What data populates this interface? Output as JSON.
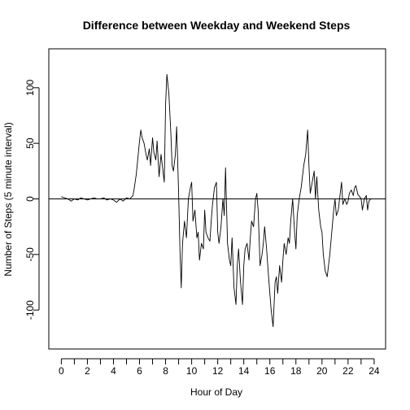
{
  "chart_data": {
    "type": "line",
    "title": "Difference between Weekday and Weekend Steps",
    "xlabel": "Hour of Day",
    "ylabel": "Number of Steps (5 minute interval)",
    "xlim": [
      -0.96,
      24.88
    ],
    "ylim": [
      -135,
      135
    ],
    "x_tick_labels": [
      "0",
      "2",
      "4",
      "6",
      "8",
      "10",
      "12",
      "14",
      "16",
      "18",
      "20",
      "22",
      "24"
    ],
    "x_minor_ticks": [
      1,
      3,
      5,
      7,
      9,
      11,
      13,
      15,
      17,
      19,
      21,
      23
    ],
    "y_ticks": [
      -100,
      -50,
      0,
      50,
      100
    ],
    "y_tick_labels": [
      "-100",
      "-50",
      "0",
      "50",
      "100"
    ],
    "reference_line": {
      "y": 0,
      "orientation": "horizontal"
    },
    "grid": false,
    "legend": "none",
    "series": [
      {
        "color": "#000000",
        "x": [
          0,
          0.25,
          0.5,
          0.75,
          1.0,
          1.25,
          1.5,
          1.75,
          2.0,
          2.25,
          2.5,
          2.75,
          3.0,
          3.25,
          3.5,
          3.75,
          4.0,
          4.25,
          4.5,
          4.75,
          5.0,
          5.25,
          5.5,
          5.6,
          5.75,
          5.9,
          6.0,
          6.1,
          6.2,
          6.35,
          6.5,
          6.6,
          6.75,
          6.85,
          7.0,
          7.1,
          7.25,
          7.35,
          7.5,
          7.65,
          7.75,
          7.9,
          8.0,
          8.1,
          8.25,
          8.4,
          8.5,
          8.6,
          8.75,
          8.85,
          9.0,
          9.1,
          9.2,
          9.3,
          9.45,
          9.6,
          9.75,
          9.9,
          10.0,
          10.1,
          10.25,
          10.4,
          10.5,
          10.6,
          10.75,
          10.9,
          11.0,
          11.1,
          11.25,
          11.4,
          11.5,
          11.6,
          11.75,
          11.9,
          12.0,
          12.1,
          12.25,
          12.4,
          12.5,
          12.6,
          12.75,
          12.9,
          13.0,
          13.1,
          13.25,
          13.4,
          13.5,
          13.6,
          13.75,
          13.9,
          14.0,
          14.1,
          14.25,
          14.4,
          14.5,
          14.6,
          14.75,
          14.9,
          15.0,
          15.1,
          15.25,
          15.4,
          15.5,
          15.6,
          15.75,
          15.9,
          16.0,
          16.1,
          16.25,
          16.4,
          16.5,
          16.6,
          16.75,
          16.9,
          17.0,
          17.1,
          17.25,
          17.4,
          17.5,
          17.6,
          17.75,
          17.9,
          18.0,
          18.1,
          18.25,
          18.4,
          18.5,
          18.6,
          18.75,
          18.9,
          19.0,
          19.1,
          19.25,
          19.4,
          19.5,
          19.6,
          19.75,
          19.9,
          20.0,
          20.1,
          20.25,
          20.4,
          20.5,
          20.6,
          20.75,
          20.9,
          21.0,
          21.1,
          21.25,
          21.4,
          21.5,
          21.6,
          21.75,
          21.9,
          22.0,
          22.1,
          22.25,
          22.4,
          22.5,
          22.6,
          22.75,
          22.9,
          23.0,
          23.1,
          23.25,
          23.4,
          23.5,
          23.6,
          23.75
        ],
        "y": [
          2,
          1,
          0,
          -2,
          0,
          -1,
          1,
          0,
          -1,
          0,
          1,
          0,
          0,
          1,
          -1,
          0,
          -1,
          -3,
          0,
          -2,
          1,
          0,
          3,
          10,
          22,
          40,
          52,
          62,
          55,
          50,
          40,
          35,
          45,
          30,
          55,
          42,
          35,
          52,
          20,
          40,
          30,
          15,
          85,
          112,
          95,
          60,
          30,
          25,
          40,
          65,
          5,
          -45,
          -80,
          -40,
          -20,
          -35,
          0,
          10,
          15,
          -20,
          -10,
          -35,
          -30,
          -55,
          -40,
          -45,
          -10,
          -30,
          -35,
          -38,
          -20,
          -5,
          10,
          15,
          -30,
          -40,
          -25,
          0,
          -15,
          28,
          -40,
          -55,
          -60,
          -35,
          -80,
          -95,
          -60,
          -45,
          -75,
          -95,
          -60,
          -45,
          -40,
          -55,
          -35,
          -20,
          -25,
          0,
          5,
          -10,
          -60,
          -50,
          -40,
          -25,
          -45,
          -70,
          -85,
          -100,
          -115,
          -75,
          -70,
          -85,
          -60,
          -75,
          -55,
          -40,
          -50,
          -35,
          -40,
          -20,
          0,
          -30,
          -45,
          -15,
          0,
          10,
          20,
          30,
          40,
          62,
          30,
          5,
          15,
          25,
          0,
          20,
          -10,
          -25,
          -30,
          -50,
          -65,
          -70,
          -60,
          -50,
          -30,
          -10,
          0,
          -15,
          -10,
          5,
          15,
          -5,
          0,
          -5,
          -2,
          5,
          8,
          3,
          10,
          12,
          4,
          2,
          0,
          -10,
          0,
          3,
          -10,
          -2,
          0
        ]
      }
    ]
  }
}
